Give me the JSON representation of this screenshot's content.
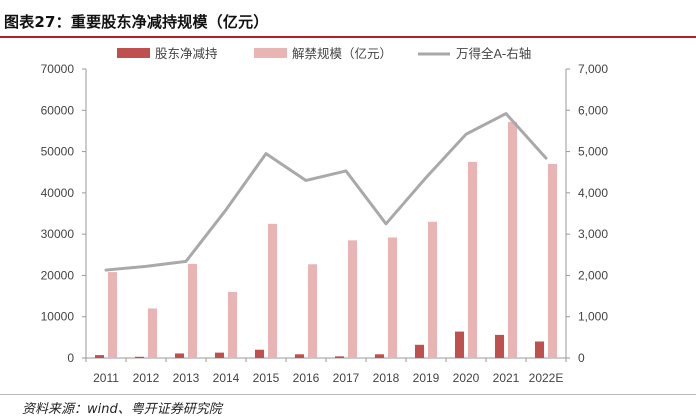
{
  "title": "图表27：重要股东净减持规模（亿元）",
  "source": "资料来源：wind、粤开证券研究院",
  "chart_data": {
    "type": "bar",
    "categories": [
      "2011",
      "2012",
      "2013",
      "2014",
      "2015",
      "2016",
      "2017",
      "2018",
      "2019",
      "2020",
      "2021",
      "2022E"
    ],
    "series": [
      {
        "name": "股东净减持",
        "type": "bar",
        "axis": "left",
        "color": "#c0504d",
        "values": [
          700,
          300,
          1100,
          1300,
          2000,
          900,
          400,
          900,
          3200,
          6400,
          5600,
          4000
        ]
      },
      {
        "name": "解禁规模（亿元）",
        "type": "bar",
        "axis": "left",
        "color": "#e8b4b4",
        "values": [
          20800,
          12000,
          22800,
          16000,
          32500,
          22700,
          28500,
          29200,
          33000,
          47500,
          57200,
          47000
        ]
      },
      {
        "name": "万得全A-右轴",
        "type": "line",
        "axis": "right",
        "color": "#a9a9a9",
        "values": [
          2130,
          2220,
          2340,
          3590,
          4950,
          4300,
          4530,
          3250,
          4370,
          5420,
          5920,
          4840
        ]
      }
    ],
    "y_left": {
      "min": 0,
      "max": 70000,
      "step": 10000,
      "ticks": [
        "0",
        "10000",
        "20000",
        "30000",
        "40000",
        "50000",
        "60000",
        "70000"
      ]
    },
    "y_right": {
      "min": 0,
      "max": 7000,
      "step": 1000,
      "ticks": [
        "0",
        "1,000",
        "2,000",
        "3,000",
        "4,000",
        "5,000",
        "6,000",
        "7,000"
      ]
    },
    "legend_position": "top",
    "grid": false
  }
}
